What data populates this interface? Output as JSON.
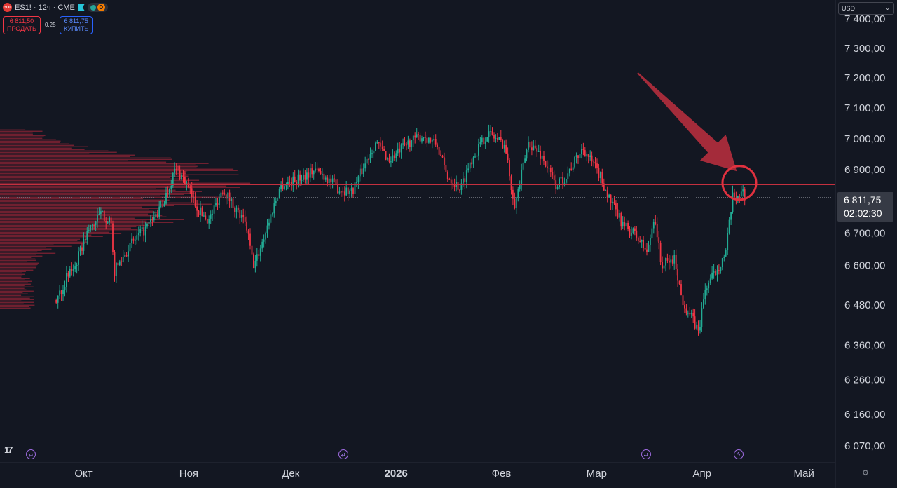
{
  "header": {
    "logo_text": "500",
    "symbol": "ES1! · 12ч · CME",
    "badge": "D"
  },
  "trade": {
    "sell_price": "6 811,50",
    "sell_label": "ПРОДАТЬ",
    "spread": "0,25",
    "buy_price": "6 811,75",
    "buy_label": "КУПИТЬ"
  },
  "currency": "USD",
  "current": {
    "price": "6 811,75",
    "countdown": "02:02:30"
  },
  "colors": {
    "background": "#131722",
    "up": "#22ab94",
    "down": "#f23645",
    "volume_profile": "#b2283a",
    "annotation": "#c4303f"
  },
  "chart_data": {
    "type": "candlestick",
    "symbol": "ES1!",
    "interval": "12ч",
    "exchange": "CME",
    "y_axis": {
      "ticks": [
        7400,
        7300,
        7200,
        7100,
        7000,
        6900,
        6811.75,
        6700,
        6600,
        6480,
        6360,
        6260,
        6160,
        6070
      ],
      "tick_labels": [
        "7 400,00",
        "7 300,00",
        "7 200,00",
        "7 100,00",
        "7 000,00",
        "6 900,00",
        "6 700,00",
        "6 600,00",
        "6 480,00",
        "6 360,00",
        "6 260,00",
        "6 160,00",
        "6 070,00"
      ],
      "scale": "log"
    },
    "x_axis": {
      "labels": [
        "Окт",
        "Ноя",
        "Дек",
        "2026",
        "Фев",
        "Мар",
        "Апр",
        "Май"
      ]
    },
    "price_path": [
      [
        "2025-09-23",
        6495
      ],
      [
        "2025-09-26",
        6560
      ],
      [
        "2025-09-29",
        6610
      ],
      [
        "2025-10-02",
        6700
      ],
      [
        "2025-10-06",
        6760
      ],
      [
        "2025-10-09",
        6740
      ],
      [
        "2025-10-10",
        6580
      ],
      [
        "2025-10-14",
        6650
      ],
      [
        "2025-10-17",
        6690
      ],
      [
        "2025-10-20",
        6720
      ],
      [
        "2025-10-24",
        6780
      ],
      [
        "2025-10-28",
        6900
      ],
      [
        "2025-10-30",
        6880
      ],
      [
        "2025-11-04",
        6770
      ],
      [
        "2025-11-07",
        6740
      ],
      [
        "2025-11-11",
        6840
      ],
      [
        "2025-11-14",
        6790
      ],
      [
        "2025-11-18",
        6720
      ],
      [
        "2025-11-20",
        6600
      ],
      [
        "2025-11-21",
        6620
      ],
      [
        "2025-11-25",
        6750
      ],
      [
        "2025-11-28",
        6850
      ],
      [
        "2025-12-03",
        6870
      ],
      [
        "2025-12-08",
        6900
      ],
      [
        "2025-12-11",
        6880
      ],
      [
        "2025-12-15",
        6840
      ],
      [
        "2025-12-19",
        6830
      ],
      [
        "2025-12-22",
        6900
      ],
      [
        "2025-12-26",
        6990
      ],
      [
        "2025-12-30",
        6930
      ],
      [
        "2026-01-05",
        6990
      ],
      [
        "2026-01-09",
        7010
      ],
      [
        "2026-01-13",
        6980
      ],
      [
        "2026-01-16",
        6880
      ],
      [
        "2026-01-20",
        6840
      ],
      [
        "2026-01-23",
        6930
      ],
      [
        "2026-01-28",
        7020
      ],
      [
        "2026-02-02",
        6980
      ],
      [
        "2026-02-04",
        6840
      ],
      [
        "2026-02-05",
        6790
      ],
      [
        "2026-02-09",
        6990
      ],
      [
        "2026-02-13",
        6940
      ],
      [
        "2026-02-17",
        6850
      ],
      [
        "2026-02-20",
        6880
      ],
      [
        "2026-02-25",
        6970
      ],
      [
        "2026-03-02",
        6880
      ],
      [
        "2026-03-05",
        6800
      ],
      [
        "2026-03-09",
        6720
      ],
      [
        "2026-03-12",
        6700
      ],
      [
        "2026-03-16",
        6640
      ],
      [
        "2026-03-18",
        6760
      ],
      [
        "2026-03-20",
        6600
      ],
      [
        "2026-03-24",
        6620
      ],
      [
        "2026-03-26",
        6500
      ],
      [
        "2026-03-31",
        6400
      ],
      [
        "2026-04-02",
        6530
      ],
      [
        "2026-04-06",
        6600
      ],
      [
        "2026-04-08",
        6640
      ],
      [
        "2026-04-10",
        6810
      ],
      [
        "2026-04-13",
        6830
      ],
      [
        "2026-04-14",
        6811.75
      ]
    ],
    "current_price": 6811.75,
    "horizontal_level": 6852,
    "volume_profile": {
      "price_range": [
        6470,
        7030
      ]
    },
    "annotations": [
      {
        "type": "arrow",
        "at": [
          "2026-04-10",
          6895
        ]
      },
      {
        "type": "circle",
        "at": [
          "2026-04-12",
          6858
        ]
      }
    ],
    "grid": false,
    "legend": "top-left"
  }
}
